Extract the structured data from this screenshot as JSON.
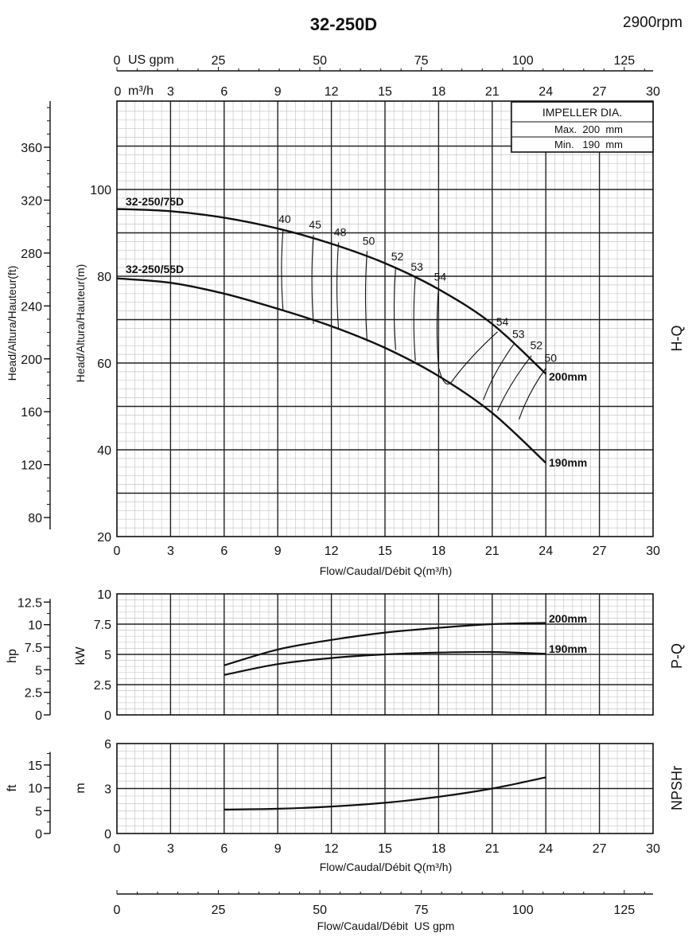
{
  "header": {
    "title": "32-250D",
    "speed": "2900rpm"
  },
  "impeller_box": {
    "title": "IMPELLER DIA.",
    "max": "Max.  200  mm",
    "min": "Min.   190  mm"
  },
  "curve_labels": {
    "model_75": "32-250/75D",
    "model_55": "32-250/55D",
    "d200": "200mm",
    "d190": "190mm",
    "pq_200": "200mm",
    "pq_190": "190mm"
  },
  "axis_labels": {
    "top_usgpm": "US gpm",
    "top_m3h": "m³/h",
    "head_ft": "Head/Altura/Hauteur(ft)",
    "head_m": "Head/Altura/Hauteur(m)",
    "flow": "Flow/Caudal/Débit Q(m³/h)",
    "flow_usgpm": "Flow/Caudal/Débit  US gpm",
    "hp": "hp",
    "kw": "kW",
    "ft": "ft",
    "m": "m"
  },
  "side_labels": {
    "hq": "H-Q",
    "pq": "P-Q",
    "npsh": "NPSHr"
  },
  "ticks": {
    "flow_m3h": [
      "0",
      "3",
      "6",
      "9",
      "12",
      "15",
      "18",
      "21",
      "24",
      "27",
      "30"
    ],
    "usgpm": [
      "0",
      "25",
      "50",
      "75",
      "100",
      "125"
    ],
    "head_m": [
      "20",
      "40",
      "60",
      "80",
      "100"
    ],
    "head_ft": [
      "80",
      "120",
      "160",
      "200",
      "240",
      "280",
      "320",
      "360"
    ],
    "power_kw": [
      "0",
      "2.5",
      "5",
      "7.5",
      "10"
    ],
    "power_hp": [
      "0",
      "2.5",
      "5",
      "7.5",
      "10",
      "12.5"
    ],
    "npsh_m": [
      "0",
      "3",
      "6"
    ],
    "npsh_ft": [
      "0",
      "5",
      "10",
      "15"
    ]
  },
  "chart_data": [
    {
      "type": "line",
      "name": "H-Q",
      "xlabel": "Flow/Caudal/Débit Q(m³/h)",
      "ylabel": "Head/Altura/Hauteur(m)",
      "xlim": [
        0,
        30
      ],
      "ylim": [
        20,
        120
      ],
      "series": [
        {
          "name": "200mm",
          "x": [
            0,
            3,
            6,
            9,
            12,
            15,
            18,
            21,
            24
          ],
          "y": [
            95.5,
            95,
            93.5,
            91,
            87.5,
            83,
            77,
            69,
            57.5
          ]
        },
        {
          "name": "190mm",
          "x": [
            0,
            3,
            6,
            9,
            12,
            15,
            18,
            21,
            24
          ],
          "y": [
            79.5,
            78.5,
            76,
            72.5,
            68.5,
            63.5,
            57,
            48.5,
            37
          ]
        }
      ],
      "efficiency_labels": [
        "40",
        "45",
        "48",
        "50",
        "52",
        "53",
        "54",
        "54",
        "53",
        "52",
        "50"
      ],
      "efficiency_contours": [
        {
          "label": "40",
          "x": [
            9.3,
            9.3
          ],
          "y": [
            90.8,
            72
          ]
        },
        {
          "label": "45",
          "x": [
            11.0,
            11.0
          ],
          "y": [
            89.5,
            69
          ]
        },
        {
          "label": "48",
          "x": [
            12.4,
            12.4
          ],
          "y": [
            87.8,
            67.7
          ]
        },
        {
          "label": "50",
          "x": [
            14.0,
            14.0
          ],
          "y": [
            85.8,
            65
          ]
        },
        {
          "label": "52",
          "x": [
            15.6,
            15.6
          ],
          "y": [
            82.2,
            63
          ]
        },
        {
          "label": "53",
          "x": [
            16.7,
            16.7
          ],
          "y": [
            79.8,
            60.5
          ]
        },
        {
          "label": "54",
          "x": [
            18.0,
            18.0
          ],
          "y": [
            77.5,
            59
          ]
        },
        {
          "label": "54",
          "x": [
            21.3,
            18.7
          ],
          "y": [
            67.2,
            55.5
          ]
        },
        {
          "label": "53",
          "x": [
            22.2,
            20.5
          ],
          "y": [
            64.3,
            51.5
          ]
        },
        {
          "label": "52",
          "x": [
            23.2,
            21.3
          ],
          "y": [
            61.7,
            49
          ]
        },
        {
          "label": "50",
          "x": [
            24.0,
            22.5
          ],
          "y": [
            58.8,
            47
          ]
        }
      ]
    },
    {
      "type": "line",
      "name": "P-Q",
      "xlim": [
        0,
        30
      ],
      "ylim": [
        0,
        10
      ],
      "ylabel": "kW",
      "series": [
        {
          "name": "200mm",
          "x": [
            6,
            9,
            12,
            15,
            18,
            21,
            24
          ],
          "y": [
            4.1,
            5.4,
            6.2,
            6.8,
            7.2,
            7.5,
            7.6
          ]
        },
        {
          "name": "190mm",
          "x": [
            6,
            9,
            12,
            15,
            18,
            21,
            24
          ],
          "y": [
            3.3,
            4.2,
            4.7,
            5.0,
            5.15,
            5.2,
            5.05
          ]
        }
      ]
    },
    {
      "type": "line",
      "name": "NPSHr",
      "xlim": [
        0,
        30
      ],
      "ylim": [
        0,
        6
      ],
      "ylabel": "m",
      "series": [
        {
          "name": "",
          "x": [
            6,
            9,
            12,
            15,
            18,
            21,
            24
          ],
          "y": [
            1.6,
            1.65,
            1.8,
            2.05,
            2.45,
            3.0,
            3.75
          ]
        }
      ]
    }
  ]
}
